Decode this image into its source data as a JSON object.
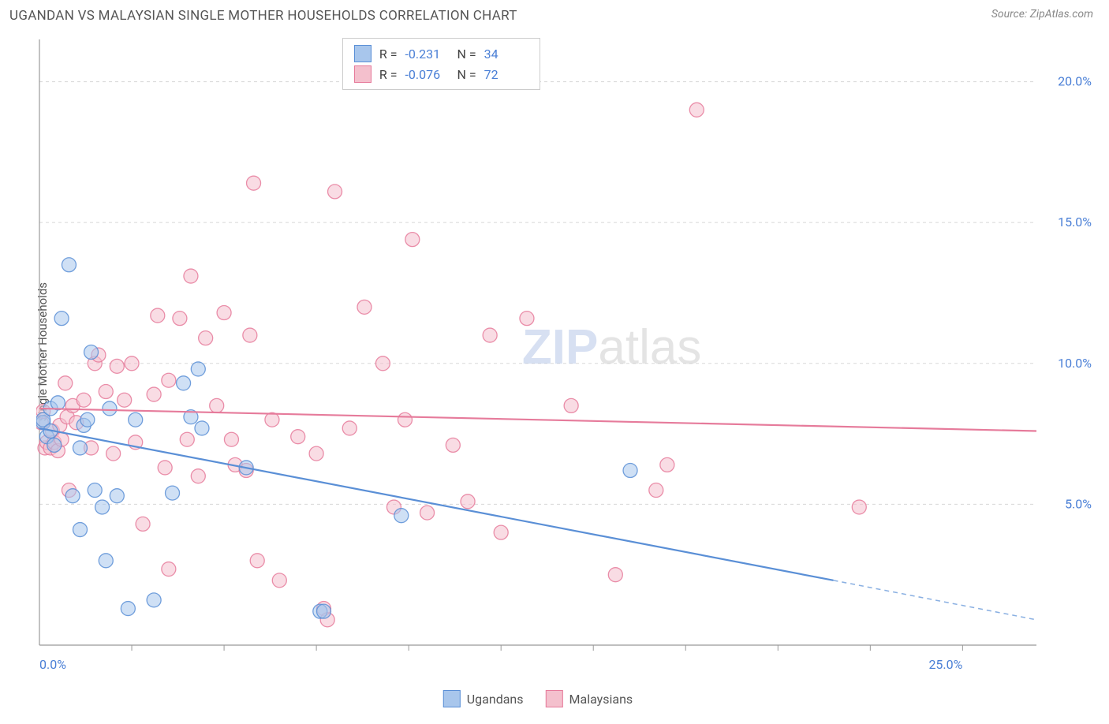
{
  "title": "UGANDAN VS MALAYSIAN SINGLE MOTHER HOUSEHOLDS CORRELATION CHART",
  "source": "Source: ZipAtlas.com",
  "ylabel": "Single Mother Households",
  "watermark_zip": "ZIP",
  "watermark_atlas": "atlas",
  "chart": {
    "type": "scatter",
    "xlim": [
      0,
      27
    ],
    "ylim": [
      0,
      21.5
    ],
    "background_color": "#ffffff",
    "axis_color": "#999999",
    "grid_color": "#d8d8d8",
    "grid_dash": "4,4",
    "tick_color": "#4a7fd6",
    "tick_fontsize": 16,
    "label_fontsize": 15,
    "title_fontsize": 17,
    "marker_radius": 9,
    "marker_opacity": 0.55,
    "y_gridlines": [
      5,
      10,
      15,
      20
    ],
    "y_ticks": [
      {
        "v": 5,
        "label": "5.0%"
      },
      {
        "v": 10,
        "label": "10.0%"
      },
      {
        "v": 15,
        "label": "15.0%"
      },
      {
        "v": 20,
        "label": "20.0%"
      }
    ],
    "x_ticks": [
      {
        "v": 0,
        "label": "0.0%"
      },
      {
        "v": 25,
        "label": "25.0%"
      }
    ],
    "x_minor_ticks": [
      2.5,
      5,
      7.5,
      10,
      12.5,
      15,
      17.5,
      20,
      22.5,
      25
    ],
    "series": [
      {
        "name": "Ugandans",
        "fill": "#a8c6ec",
        "stroke": "#5a8fd6",
        "r_value": "-0.231",
        "n_value": "34",
        "trend": {
          "x1": 0,
          "y1": 7.7,
          "x2_solid": 21.5,
          "y2_solid": 2.3,
          "x2_dash": 27,
          "y2_dash": 0.9,
          "width": 2.2
        },
        "points": [
          [
            0.1,
            7.9
          ],
          [
            0.1,
            8.0
          ],
          [
            0.2,
            7.4
          ],
          [
            0.3,
            7.6
          ],
          [
            0.3,
            8.4
          ],
          [
            0.4,
            7.1
          ],
          [
            0.5,
            8.6
          ],
          [
            0.6,
            11.6
          ],
          [
            0.8,
            13.5
          ],
          [
            0.9,
            5.3
          ],
          [
            1.1,
            4.1
          ],
          [
            1.2,
            7.8
          ],
          [
            1.1,
            7.0
          ],
          [
            1.3,
            8.0
          ],
          [
            1.4,
            10.4
          ],
          [
            1.5,
            5.5
          ],
          [
            1.7,
            4.9
          ],
          [
            1.8,
            3.0
          ],
          [
            1.9,
            8.4
          ],
          [
            2.1,
            5.3
          ],
          [
            2.4,
            1.3
          ],
          [
            2.6,
            8.0
          ],
          [
            3.1,
            1.6
          ],
          [
            3.6,
            5.4
          ],
          [
            3.9,
            9.3
          ],
          [
            4.1,
            8.1
          ],
          [
            4.3,
            9.8
          ],
          [
            4.4,
            7.7
          ],
          [
            5.6,
            6.3
          ],
          [
            7.6,
            1.2
          ],
          [
            7.7,
            1.2
          ],
          [
            9.8,
            4.6
          ],
          [
            16.0,
            6.2
          ]
        ]
      },
      {
        "name": "Malaysians",
        "fill": "#f4c0cd",
        "stroke": "#e67b9b",
        "r_value": "-0.076",
        "n_value": "72",
        "trend": {
          "x1": 0,
          "y1": 8.4,
          "x2_solid": 27,
          "y2_solid": 7.6,
          "x2_dash": 27,
          "y2_dash": 7.6,
          "width": 2.2
        },
        "points": [
          [
            0.05,
            7.9
          ],
          [
            0.1,
            8.3
          ],
          [
            0.15,
            7.0
          ],
          [
            0.2,
            7.2
          ],
          [
            0.3,
            7.0
          ],
          [
            0.35,
            7.6
          ],
          [
            0.4,
            7.2
          ],
          [
            0.5,
            6.9
          ],
          [
            0.55,
            7.8
          ],
          [
            0.6,
            7.3
          ],
          [
            0.7,
            9.3
          ],
          [
            0.75,
            8.1
          ],
          [
            0.8,
            5.5
          ],
          [
            0.9,
            8.5
          ],
          [
            1.0,
            7.9
          ],
          [
            1.2,
            8.7
          ],
          [
            1.4,
            7.0
          ],
          [
            1.5,
            10.0
          ],
          [
            1.6,
            10.3
          ],
          [
            1.8,
            9.0
          ],
          [
            2.0,
            6.8
          ],
          [
            2.1,
            9.9
          ],
          [
            2.3,
            8.7
          ],
          [
            2.5,
            10.0
          ],
          [
            2.6,
            7.2
          ],
          [
            2.8,
            4.3
          ],
          [
            3.1,
            8.9
          ],
          [
            3.2,
            11.7
          ],
          [
            3.4,
            6.3
          ],
          [
            3.5,
            9.4
          ],
          [
            3.5,
            2.7
          ],
          [
            3.8,
            11.6
          ],
          [
            4.0,
            7.3
          ],
          [
            4.1,
            13.1
          ],
          [
            4.3,
            6.0
          ],
          [
            4.5,
            10.9
          ],
          [
            4.8,
            8.5
          ],
          [
            5.0,
            11.8
          ],
          [
            5.2,
            7.3
          ],
          [
            5.3,
            6.4
          ],
          [
            5.6,
            6.2
          ],
          [
            5.7,
            11.0
          ],
          [
            5.8,
            16.4
          ],
          [
            5.9,
            3.0
          ],
          [
            6.3,
            8.0
          ],
          [
            6.5,
            2.3
          ],
          [
            7.0,
            7.4
          ],
          [
            7.5,
            6.8
          ],
          [
            7.7,
            1.3
          ],
          [
            7.8,
            0.9
          ],
          [
            8.0,
            16.1
          ],
          [
            8.4,
            7.7
          ],
          [
            8.8,
            12.0
          ],
          [
            9.3,
            10.0
          ],
          [
            9.6,
            4.9
          ],
          [
            9.9,
            8.0
          ],
          [
            10.1,
            14.4
          ],
          [
            10.5,
            4.7
          ],
          [
            11.2,
            7.1
          ],
          [
            11.6,
            5.1
          ],
          [
            12.2,
            11.0
          ],
          [
            12.5,
            4.0
          ],
          [
            13.2,
            11.6
          ],
          [
            14.4,
            8.5
          ],
          [
            15.6,
            2.5
          ],
          [
            16.7,
            5.5
          ],
          [
            17.0,
            6.4
          ],
          [
            17.8,
            19.0
          ],
          [
            22.2,
            4.9
          ]
        ]
      }
    ]
  },
  "stats_legend": {
    "r_label": "R =",
    "n_label": "N ="
  },
  "bottom_legend": [
    {
      "label": "Ugandans",
      "fill": "#a8c6ec",
      "stroke": "#5a8fd6"
    },
    {
      "label": "Malaysians",
      "fill": "#f4c0cd",
      "stroke": "#e67b9b"
    }
  ]
}
